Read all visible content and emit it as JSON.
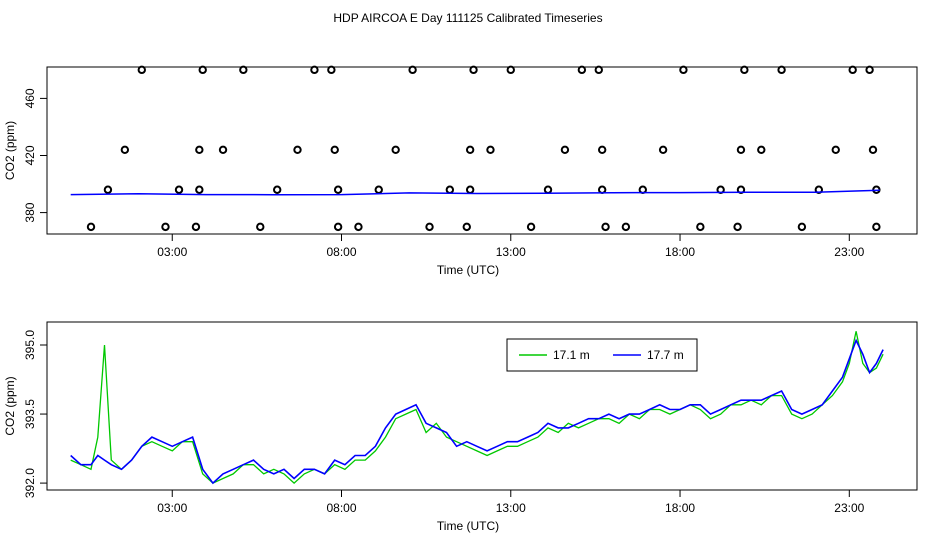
{
  "title": "HDP AIRCOA E  Day 111125  Calibrated Timeseries",
  "colors": {
    "series1": "#00c800",
    "series2": "#0000ff",
    "points": "#000000"
  },
  "chart_data": [
    {
      "type": "scatter",
      "xlabel": "Time (UTC)",
      "ylabel": "CO2 (ppm)",
      "xlim": [
        -0.7,
        25
      ],
      "ylim": [
        365,
        482
      ],
      "x_ticks": [
        3,
        8,
        13,
        18,
        23
      ],
      "x_tick_labels": [
        "03:00",
        "08:00",
        "13:00",
        "18:00",
        "23:00"
      ],
      "y_ticks": [
        380,
        420,
        460
      ],
      "y_tick_labels": [
        "380",
        "420",
        "460"
      ],
      "grid": false,
      "series": [
        {
          "type": "scatter",
          "points": [
            {
              "x": 0.6,
              "y": 370
            },
            {
              "x": 1.1,
              "y": 396
            },
            {
              "x": 1.6,
              "y": 424
            },
            {
              "x": 2.1,
              "y": 480
            },
            {
              "x": 2.8,
              "y": 370
            },
            {
              "x": 3.2,
              "y": 396
            },
            {
              "x": 3.7,
              "y": 370
            },
            {
              "x": 3.8,
              "y": 396
            },
            {
              "x": 3.8,
              "y": 424
            },
            {
              "x": 3.9,
              "y": 480
            },
            {
              "x": 4.5,
              "y": 424
            },
            {
              "x": 5.1,
              "y": 480
            },
            {
              "x": 5.6,
              "y": 370
            },
            {
              "x": 6.1,
              "y": 396
            },
            {
              "x": 6.7,
              "y": 424
            },
            {
              "x": 7.2,
              "y": 480
            },
            {
              "x": 7.7,
              "y": 480
            },
            {
              "x": 7.8,
              "y": 424
            },
            {
              "x": 7.9,
              "y": 396
            },
            {
              "x": 7.9,
              "y": 370
            },
            {
              "x": 8.5,
              "y": 370
            },
            {
              "x": 9.1,
              "y": 396
            },
            {
              "x": 9.6,
              "y": 424
            },
            {
              "x": 10.1,
              "y": 480
            },
            {
              "x": 10.6,
              "y": 370
            },
            {
              "x": 11.2,
              "y": 396
            },
            {
              "x": 11.7,
              "y": 370
            },
            {
              "x": 11.8,
              "y": 396
            },
            {
              "x": 11.8,
              "y": 424
            },
            {
              "x": 11.9,
              "y": 480
            },
            {
              "x": 12.4,
              "y": 424
            },
            {
              "x": 13.0,
              "y": 480
            },
            {
              "x": 13.6,
              "y": 370
            },
            {
              "x": 14.1,
              "y": 396
            },
            {
              "x": 14.6,
              "y": 424
            },
            {
              "x": 15.1,
              "y": 480
            },
            {
              "x": 15.6,
              "y": 480
            },
            {
              "x": 15.7,
              "y": 424
            },
            {
              "x": 15.7,
              "y": 396
            },
            {
              "x": 15.8,
              "y": 370
            },
            {
              "x": 16.4,
              "y": 370
            },
            {
              "x": 16.9,
              "y": 396
            },
            {
              "x": 17.5,
              "y": 424
            },
            {
              "x": 18.1,
              "y": 480
            },
            {
              "x": 18.6,
              "y": 370
            },
            {
              "x": 19.2,
              "y": 396
            },
            {
              "x": 19.7,
              "y": 370
            },
            {
              "x": 19.8,
              "y": 396
            },
            {
              "x": 19.8,
              "y": 424
            },
            {
              "x": 19.9,
              "y": 480
            },
            {
              "x": 20.4,
              "y": 424
            },
            {
              "x": 21.0,
              "y": 480
            },
            {
              "x": 21.6,
              "y": 370
            },
            {
              "x": 22.1,
              "y": 396
            },
            {
              "x": 22.6,
              "y": 424
            },
            {
              "x": 23.1,
              "y": 480
            },
            {
              "x": 23.6,
              "y": 480
            },
            {
              "x": 23.7,
              "y": 424
            },
            {
              "x": 23.8,
              "y": 396
            },
            {
              "x": 23.8,
              "y": 370
            }
          ]
        },
        {
          "type": "line",
          "x": [
            0,
            2,
            4,
            6,
            8,
            10,
            12,
            14,
            16,
            18,
            20,
            22,
            23.3,
            23.9
          ],
          "values": [
            392.6,
            393.2,
            392.6,
            392.5,
            392.6,
            393.8,
            393.4,
            393.6,
            393.9,
            394.0,
            394.2,
            394.3,
            395.2,
            395.6
          ]
        }
      ]
    },
    {
      "type": "line",
      "xlabel": "Time (UTC)",
      "ylabel": "CO2 (ppm)",
      "xlim": [
        -0.7,
        25
      ],
      "ylim": [
        391.85,
        395.5
      ],
      "x_ticks": [
        3,
        8,
        13,
        18,
        23
      ],
      "x_tick_labels": [
        "03:00",
        "08:00",
        "13:00",
        "18:00",
        "23:00"
      ],
      "y_ticks": [
        392.0,
        393.5,
        395.0
      ],
      "y_tick_labels": [
        "392.0",
        "393.5",
        "395.0"
      ],
      "legend": {
        "position": "top-right",
        "entries": [
          "17.1 m",
          "17.7 m"
        ]
      },
      "grid": false,
      "x": [
        0.0,
        0.3,
        0.6,
        0.8,
        1.0,
        1.2,
        1.5,
        1.8,
        2.1,
        2.4,
        2.7,
        3.0,
        3.3,
        3.6,
        3.9,
        4.2,
        4.5,
        4.8,
        5.1,
        5.4,
        5.7,
        6.0,
        6.3,
        6.6,
        6.9,
        7.2,
        7.5,
        7.8,
        8.1,
        8.4,
        8.7,
        9.0,
        9.3,
        9.6,
        9.9,
        10.2,
        10.5,
        10.8,
        11.1,
        11.4,
        11.7,
        12.0,
        12.3,
        12.6,
        12.9,
        13.2,
        13.5,
        13.8,
        14.1,
        14.4,
        14.7,
        15.0,
        15.3,
        15.6,
        15.9,
        16.2,
        16.5,
        16.8,
        17.1,
        17.4,
        17.7,
        18.0,
        18.3,
        18.6,
        18.9,
        19.2,
        19.5,
        19.8,
        20.1,
        20.4,
        20.7,
        21.0,
        21.3,
        21.6,
        21.9,
        22.2,
        22.5,
        22.8,
        23.0,
        23.2,
        23.4,
        23.6,
        23.8,
        24.0
      ],
      "series": [
        {
          "name": "17.1 m",
          "values": [
            392.5,
            392.4,
            392.3,
            393.0,
            395.0,
            392.5,
            392.3,
            392.5,
            392.8,
            392.9,
            392.8,
            392.7,
            392.9,
            392.9,
            392.2,
            392.0,
            392.1,
            392.2,
            392.4,
            392.4,
            392.2,
            392.3,
            392.2,
            392.0,
            392.2,
            392.3,
            392.2,
            392.4,
            392.3,
            392.5,
            392.5,
            392.7,
            393.0,
            393.4,
            393.5,
            393.6,
            393.1,
            393.3,
            393.0,
            392.9,
            392.8,
            392.7,
            392.6,
            392.7,
            392.8,
            392.8,
            392.9,
            393.0,
            393.2,
            393.1,
            393.3,
            393.2,
            393.3,
            393.4,
            393.4,
            393.3,
            393.5,
            393.4,
            393.6,
            393.6,
            393.5,
            393.6,
            393.7,
            393.6,
            393.4,
            393.5,
            393.7,
            393.7,
            393.8,
            393.7,
            393.9,
            393.9,
            393.5,
            393.4,
            393.5,
            393.7,
            393.9,
            394.2,
            394.6,
            395.3,
            394.6,
            394.4,
            394.5,
            394.8
          ]
        },
        {
          "name": "17.7 m",
          "values": [
            392.6,
            392.4,
            392.4,
            392.6,
            392.5,
            392.4,
            392.3,
            392.5,
            392.8,
            393.0,
            392.9,
            392.8,
            392.9,
            393.0,
            392.3,
            392.0,
            392.2,
            392.3,
            392.4,
            392.5,
            392.3,
            392.2,
            392.3,
            392.1,
            392.3,
            392.3,
            392.2,
            392.5,
            392.4,
            392.6,
            392.6,
            392.8,
            393.2,
            393.5,
            393.6,
            393.7,
            393.3,
            393.2,
            393.1,
            392.8,
            392.9,
            392.8,
            392.7,
            392.8,
            392.9,
            392.9,
            393.0,
            393.1,
            393.3,
            393.2,
            393.2,
            393.3,
            393.4,
            393.4,
            393.5,
            393.4,
            393.5,
            393.5,
            393.6,
            393.7,
            393.6,
            393.6,
            393.7,
            393.7,
            393.5,
            393.6,
            393.7,
            393.8,
            393.8,
            393.8,
            393.9,
            394.0,
            393.6,
            393.5,
            393.6,
            393.7,
            394.0,
            394.3,
            394.7,
            395.1,
            394.8,
            394.4,
            394.6,
            394.9
          ]
        }
      ]
    }
  ]
}
